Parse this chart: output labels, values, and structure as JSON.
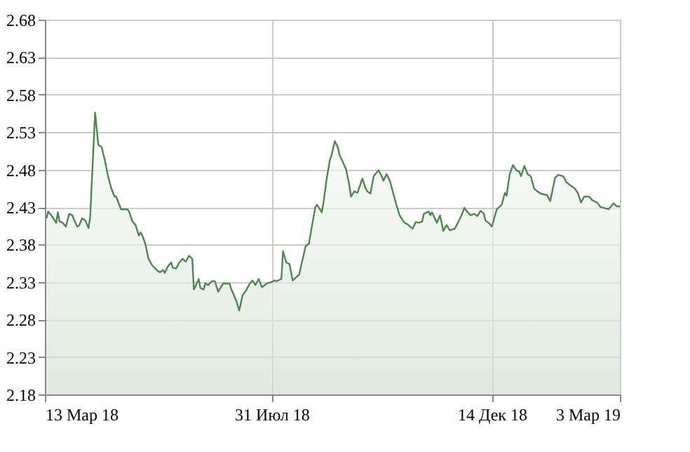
{
  "chart_data": {
    "type": "area",
    "grid": true,
    "xlim": [
      "2018-03-13",
      "2019-03-03"
    ],
    "ylim": [
      2.18,
      2.68
    ],
    "xticks": [
      {
        "value": "2018-03-13",
        "label": "13 Мар 18"
      },
      {
        "value": "2018-07-31",
        "label": "31 Июл 18"
      },
      {
        "value": "2018-12-14",
        "label": "14 Дек 18"
      },
      {
        "value": "2019-03-03",
        "label": "3 Мар 19"
      }
    ],
    "yticks": [
      2.18,
      2.23,
      2.28,
      2.33,
      2.38,
      2.43,
      2.48,
      2.53,
      2.58,
      2.63,
      2.68
    ],
    "series": [
      {
        "color": "#4a8a4a",
        "x": [
          "2018-03-14",
          "2018-03-15",
          "2018-03-17",
          "2018-03-20",
          "2018-03-21",
          "2018-03-22",
          "2018-03-24",
          "2018-03-26",
          "2018-03-28",
          "2018-03-30",
          "2018-03-31",
          "2018-04-02",
          "2018-04-03",
          "2018-04-05",
          "2018-04-07",
          "2018-04-09",
          "2018-04-10",
          "2018-04-13",
          "2018-04-15",
          "2018-04-17",
          "2018-04-19",
          "2018-04-21",
          "2018-04-23",
          "2018-04-25",
          "2018-04-26",
          "2018-04-29",
          "2018-05-03",
          "2018-05-04",
          "2018-05-06",
          "2018-05-08",
          "2018-05-10",
          "2018-05-11",
          "2018-05-12",
          "2018-05-14",
          "2018-05-16",
          "2018-05-18",
          "2018-05-21",
          "2018-05-23",
          "2018-05-25",
          "2018-05-26",
          "2018-05-28",
          "2018-05-30",
          "2018-05-31",
          "2018-06-02",
          "2018-06-04",
          "2018-06-06",
          "2018-06-08",
          "2018-06-10",
          "2018-06-12",
          "2018-06-13",
          "2018-06-16",
          "2018-06-17",
          "2018-06-19",
          "2018-06-20",
          "2018-06-22",
          "2018-06-24",
          "2018-06-26",
          "2018-06-28",
          "2018-07-01",
          "2018-07-05",
          "2018-07-06",
          "2018-07-09",
          "2018-07-11",
          "2018-07-13",
          "2018-07-15",
          "2018-07-17",
          "2018-07-19",
          "2018-07-21",
          "2018-07-23",
          "2018-07-25",
          "2018-07-28",
          "2018-07-31",
          "2018-08-02",
          "2018-08-03",
          "2018-08-06",
          "2018-08-07",
          "2018-08-09",
          "2018-08-11",
          "2018-08-13",
          "2018-08-16",
          "2018-08-17",
          "2018-08-19",
          "2018-08-21",
          "2018-08-23",
          "2018-08-25",
          "2018-08-27",
          "2018-08-28",
          "2018-08-31",
          "2018-09-01",
          "2018-09-03",
          "2018-09-05",
          "2018-09-06",
          "2018-09-08",
          "2018-09-10",
          "2018-09-11",
          "2018-09-13",
          "2018-09-15",
          "2018-09-17",
          "2018-09-18",
          "2018-09-20",
          "2018-09-22",
          "2018-09-25",
          "2018-09-27",
          "2018-09-28",
          "2018-09-30",
          "2018-10-02",
          "2018-10-03",
          "2018-10-05",
          "2018-10-07",
          "2018-10-08",
          "2018-10-10",
          "2018-10-12",
          "2018-10-14",
          "2018-10-16",
          "2018-10-18",
          "2018-10-21",
          "2018-10-23",
          "2018-10-26",
          "2018-10-28",
          "2018-10-30",
          "2018-11-01",
          "2018-11-02",
          "2018-11-05",
          "2018-11-06",
          "2018-11-07",
          "2018-11-10",
          "2018-11-12",
          "2018-11-14",
          "2018-11-16",
          "2018-11-18",
          "2018-11-21",
          "2018-11-23",
          "2018-11-25",
          "2018-11-27",
          "2018-11-29",
          "2018-12-01",
          "2018-12-03",
          "2018-12-05",
          "2018-12-07",
          "2018-12-09",
          "2018-12-10",
          "2018-12-12",
          "2018-12-14",
          "2018-12-17",
          "2018-12-20",
          "2018-12-22",
          "2018-12-23",
          "2018-12-25",
          "2018-12-27",
          "2018-12-29",
          "2018-12-31",
          "2019-01-01",
          "2019-01-03",
          "2019-01-05",
          "2019-01-07",
          "2019-01-09",
          "2019-01-11",
          "2019-01-13",
          "2019-01-17",
          "2019-01-19",
          "2019-01-22",
          "2019-01-24",
          "2019-01-27",
          "2019-01-29",
          "2019-02-01",
          "2019-02-03",
          "2019-02-05",
          "2019-02-07",
          "2019-02-09",
          "2019-02-12",
          "2019-02-14",
          "2019-02-17",
          "2019-02-19",
          "2019-02-21",
          "2019-02-24",
          "2019-02-27",
          "2019-03-01",
          "2019-03-03"
        ],
        "values": [
          2.415,
          2.424,
          2.419,
          2.409,
          2.423,
          2.411,
          2.409,
          2.404,
          2.421,
          2.419,
          2.413,
          2.404,
          2.405,
          2.415,
          2.412,
          2.402,
          2.418,
          2.556,
          2.513,
          2.51,
          2.493,
          2.471,
          2.455,
          2.444,
          2.444,
          2.427,
          2.427,
          2.424,
          2.411,
          2.406,
          2.392,
          2.396,
          2.393,
          2.381,
          2.361,
          2.353,
          2.346,
          2.343,
          2.346,
          2.342,
          2.351,
          2.356,
          2.349,
          2.348,
          2.356,
          2.361,
          2.357,
          2.365,
          2.361,
          2.32,
          2.334,
          2.322,
          2.32,
          2.328,
          2.326,
          2.331,
          2.331,
          2.317,
          2.328,
          2.328,
          2.321,
          2.306,
          2.292,
          2.312,
          2.318,
          2.326,
          2.332,
          2.326,
          2.334,
          2.323,
          2.328,
          2.33,
          2.332,
          2.331,
          2.334,
          2.371,
          2.356,
          2.354,
          2.332,
          2.338,
          2.34,
          2.359,
          2.378,
          2.381,
          2.406,
          2.43,
          2.433,
          2.423,
          2.436,
          2.468,
          2.493,
          2.499,
          2.518,
          2.509,
          2.499,
          2.49,
          2.48,
          2.459,
          2.444,
          2.451,
          2.449,
          2.468,
          2.455,
          2.451,
          2.448,
          2.471,
          2.474,
          2.479,
          2.471,
          2.465,
          2.474,
          2.465,
          2.449,
          2.433,
          2.419,
          2.409,
          2.407,
          2.401,
          2.41,
          2.409,
          2.411,
          2.421,
          2.424,
          2.419,
          2.423,
          2.409,
          2.419,
          2.398,
          2.406,
          2.399,
          2.401,
          2.409,
          2.418,
          2.429,
          2.423,
          2.419,
          2.421,
          2.418,
          2.425,
          2.421,
          2.412,
          2.409,
          2.404,
          2.427,
          2.433,
          2.449,
          2.445,
          2.474,
          2.486,
          2.479,
          2.477,
          2.471,
          2.485,
          2.474,
          2.471,
          2.455,
          2.451,
          2.448,
          2.446,
          2.438,
          2.469,
          2.473,
          2.471,
          2.463,
          2.458,
          2.455,
          2.449,
          2.436,
          2.444,
          2.444,
          2.439,
          2.436,
          2.43,
          2.429,
          2.427,
          2.435,
          2.431,
          2.431
        ]
      }
    ]
  }
}
